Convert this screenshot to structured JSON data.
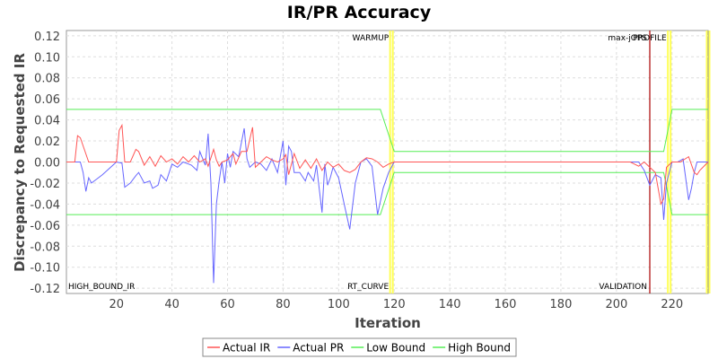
{
  "chart_data": {
    "type": "line",
    "title": "IR/PR Accuracy",
    "xlabel": "Iteration",
    "ylabel": "Discrepancy to Requested IR",
    "xlim": [
      2,
      233
    ],
    "ylim": [
      -0.125,
      0.125
    ],
    "xticks": [
      20,
      40,
      60,
      80,
      100,
      120,
      140,
      160,
      180,
      200,
      220
    ],
    "yticks": [
      -0.12,
      -0.1,
      -0.08,
      -0.06,
      -0.04,
      -0.02,
      0.0,
      0.02,
      0.04,
      0.06,
      0.08,
      0.1,
      0.12
    ],
    "grid": true,
    "legend_position": "bottom",
    "series": [
      {
        "name": "Actual IR",
        "color": "#ff5555",
        "x": [
          2,
          5,
          6,
          7,
          10,
          20,
          21,
          22,
          23,
          24,
          25,
          27,
          28,
          30,
          32,
          34,
          36,
          38,
          40,
          42,
          44,
          46,
          48,
          50,
          52,
          53,
          54,
          55,
          56,
          57,
          58,
          60,
          62,
          63,
          65,
          67,
          69,
          70,
          72,
          74,
          76,
          78,
          80,
          81,
          82,
          84,
          86,
          88,
          90,
          92,
          94,
          96,
          98,
          100,
          102,
          104,
          106,
          108,
          110,
          112,
          114,
          116,
          118,
          120,
          140,
          160,
          180,
          200,
          205,
          208,
          210,
          212,
          214,
          215,
          216,
          217,
          218,
          220,
          223,
          226,
          228,
          229,
          230,
          233
        ],
        "y": [
          0.0,
          0.0,
          0.025,
          0.023,
          0.0,
          0.0,
          0.03,
          0.035,
          0.0,
          0.0,
          0.0,
          0.012,
          0.01,
          -0.003,
          0.005,
          -0.004,
          0.006,
          0.0,
          0.003,
          -0.002,
          0.005,
          0.0,
          0.006,
          0.0,
          0.003,
          -0.004,
          0.004,
          0.012,
          0.002,
          -0.004,
          0.0,
          0.002,
          0.008,
          -0.002,
          0.01,
          0.01,
          0.033,
          -0.005,
          0.0,
          0.005,
          0.002,
          0.0,
          0.003,
          0.007,
          -0.012,
          0.008,
          -0.006,
          0.002,
          -0.006,
          0.003,
          -0.008,
          0.0,
          -0.005,
          -0.002,
          -0.008,
          -0.01,
          -0.007,
          0.0,
          0.004,
          0.003,
          0.0,
          -0.005,
          -0.002,
          0.0,
          0.0,
          0.0,
          0.0,
          0.0,
          0.0,
          -0.004,
          0.0,
          -0.005,
          -0.01,
          -0.025,
          -0.04,
          -0.035,
          -0.005,
          0.0,
          0.0,
          0.005,
          -0.01,
          -0.012,
          -0.008,
          0.0
        ]
      },
      {
        "name": "Actual PR",
        "color": "#6666ff",
        "x": [
          2,
          7,
          8,
          9,
          10,
          11,
          12,
          15,
          20,
          22,
          23,
          25,
          27,
          28,
          30,
          32,
          33,
          35,
          36,
          38,
          40,
          42,
          44,
          46,
          47,
          49,
          50,
          52,
          53,
          54,
          55,
          56,
          57,
          58,
          59,
          60,
          61,
          62,
          64,
          66,
          67,
          68,
          70,
          72,
          74,
          76,
          78,
          80,
          81,
          82,
          83,
          84,
          86,
          88,
          89,
          91,
          92,
          94,
          95,
          96,
          97,
          98,
          100,
          102,
          104,
          106,
          108,
          110,
          112,
          114,
          116,
          118,
          120,
          140,
          160,
          180,
          200,
          205,
          208,
          210,
          211,
          212,
          214,
          216,
          217,
          218,
          220,
          222,
          224,
          226,
          227,
          228,
          229,
          233
        ],
        "y": [
          0.0,
          0.0,
          -0.01,
          -0.028,
          -0.015,
          -0.02,
          -0.018,
          -0.012,
          0.0,
          -0.001,
          -0.024,
          -0.02,
          -0.013,
          -0.01,
          -0.02,
          -0.018,
          -0.025,
          -0.022,
          -0.012,
          -0.018,
          -0.002,
          -0.005,
          0.0,
          -0.002,
          -0.003,
          -0.008,
          0.01,
          -0.003,
          0.027,
          -0.02,
          -0.115,
          -0.04,
          -0.018,
          0.0,
          -0.02,
          0.008,
          -0.005,
          0.01,
          0.005,
          0.032,
          0.003,
          -0.005,
          0.0,
          -0.002,
          -0.008,
          0.003,
          -0.01,
          0.02,
          -0.022,
          0.015,
          0.01,
          -0.01,
          -0.01,
          -0.018,
          -0.01,
          -0.018,
          -0.003,
          -0.048,
          -0.002,
          -0.022,
          -0.015,
          -0.005,
          -0.015,
          -0.04,
          -0.064,
          -0.02,
          0.0,
          0.003,
          -0.004,
          -0.05,
          -0.025,
          -0.01,
          0.0,
          0.0,
          0.0,
          0.0,
          0.0,
          0.0,
          0.0,
          -0.008,
          -0.015,
          -0.022,
          -0.012,
          -0.015,
          -0.055,
          -0.02,
          0.0,
          0.0,
          0.003,
          -0.036,
          -0.025,
          -0.01,
          0.0,
          0.0
        ]
      },
      {
        "name": "Low Bound",
        "color": "#55ee55",
        "x": [
          2,
          115,
          120,
          217,
          220,
          233
        ],
        "y": [
          -0.05,
          -0.05,
          -0.01,
          -0.01,
          -0.05,
          -0.05
        ]
      },
      {
        "name": "High Bound",
        "color": "#55ee55",
        "x": [
          2,
          115,
          120,
          217,
          220,
          233
        ],
        "y": [
          0.05,
          0.05,
          0.01,
          0.01,
          0.05,
          0.05
        ]
      }
    ],
    "markers": [
      {
        "x": 119,
        "color": "#ffff66",
        "top_label": "WARMUP",
        "bottom_label": "RT_CURVE"
      },
      {
        "x": 212,
        "color": "#aa0000",
        "top_label": "max-jOPS",
        "bottom_label": "VALIDATION"
      },
      {
        "x": 219,
        "color": "#ffff66",
        "top_label": "PROFILE",
        "bottom_label": ""
      },
      {
        "x": 233,
        "color": "#ffff66",
        "top_label": "",
        "bottom_label": ""
      }
    ],
    "corner_label": "HIGH_BOUND_IR"
  }
}
